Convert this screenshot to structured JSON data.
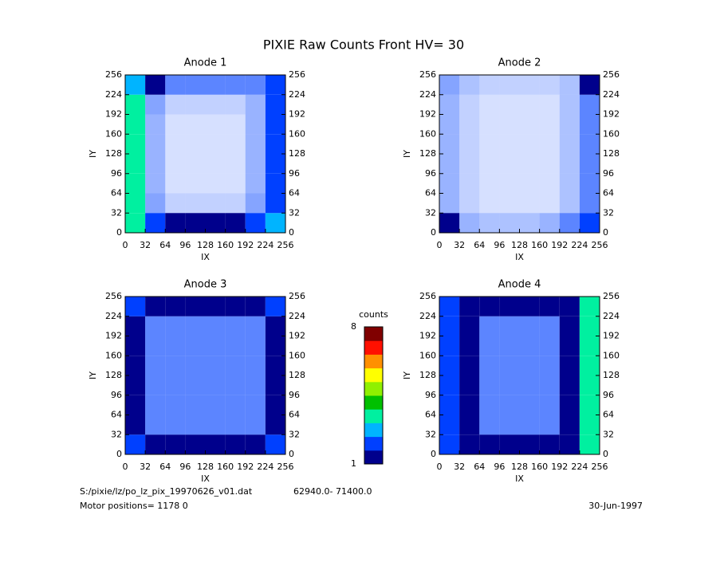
{
  "title": "PIXIE Raw Counts Front HV= 30",
  "file": "S:/pixie/lz/po_lz_pix_19970626_v01.dat",
  "range": "62940.0- 71400.0",
  "motor": "Motor positions= 1178 0",
  "date": "30-Jun-1997",
  "colorbar": {
    "label": "counts",
    "ticks": [
      1,
      8
    ],
    "lim": [
      1,
      8
    ],
    "colors": [
      "#00008c",
      "#0040ff",
      "#00b4ff",
      "#00f0a0",
      "#00c000",
      "#90f000",
      "#ffff00",
      "#ff9000",
      "#ff1000",
      "#800000"
    ]
  },
  "chart_data": [
    {
      "type": "heatmap",
      "title": "Anode 1",
      "xlabel": "IX",
      "ylabel": "IY",
      "xlim": [
        0,
        256
      ],
      "ylim": [
        0,
        256
      ],
      "xticks": [
        0,
        32,
        64,
        96,
        128,
        160,
        192,
        224,
        256
      ],
      "yticks": [
        0,
        32,
        64,
        96,
        128,
        160,
        192,
        224,
        256
      ],
      "xbins": [
        0,
        32,
        64,
        96,
        128,
        160,
        192,
        224,
        256
      ],
      "ybins": [
        0,
        32,
        64,
        96,
        128,
        160,
        192,
        224,
        256
      ],
      "z": [
        [
          3,
          1.5,
          1.2,
          1.2,
          1.2,
          1.3,
          1.5,
          2.5
        ],
        [
          3,
          0.6,
          0.3,
          0.3,
          0.3,
          0.3,
          0.6,
          2
        ],
        [
          3.5,
          0.5,
          0.2,
          0.2,
          0.2,
          0.2,
          0.5,
          2
        ],
        [
          3.5,
          0.5,
          0.2,
          0.2,
          0.2,
          0.2,
          0.5,
          2
        ],
        [
          3.5,
          0.5,
          0.2,
          0.2,
          0.2,
          0.2,
          0.5,
          2
        ],
        [
          3.5,
          0.5,
          0.2,
          0.2,
          0.2,
          0.2,
          0.5,
          2
        ],
        [
          3,
          0.6,
          0.3,
          0.3,
          0.3,
          0.3,
          0.5,
          2
        ],
        [
          2.5,
          1,
          0.8,
          0.8,
          0.8,
          0.8,
          0.8,
          2
        ]
      ]
    },
    {
      "type": "heatmap",
      "title": "Anode 2",
      "xlabel": "IX",
      "ylabel": "IY",
      "xlim": [
        0,
        256
      ],
      "ylim": [
        0,
        256
      ],
      "xticks": [
        0,
        32,
        64,
        96,
        128,
        160,
        192,
        224,
        256
      ],
      "yticks": [
        0,
        32,
        64,
        96,
        128,
        160,
        192,
        224,
        256
      ],
      "xbins": [
        0,
        32,
        64,
        96,
        128,
        160,
        192,
        224,
        256
      ],
      "ybins": [
        0,
        32,
        64,
        96,
        128,
        160,
        192,
        224,
        256
      ],
      "z": [
        [
          1,
          0.5,
          0.4,
          0.4,
          0.4,
          0.5,
          0.8,
          1.5
        ],
        [
          0.5,
          0.3,
          0.2,
          0.2,
          0.2,
          0.2,
          0.4,
          0.8
        ],
        [
          0.5,
          0.3,
          0.2,
          0.2,
          0.2,
          0.2,
          0.4,
          0.8
        ],
        [
          0.5,
          0.3,
          0.2,
          0.2,
          0.2,
          0.2,
          0.4,
          0.8
        ],
        [
          0.5,
          0.3,
          0.2,
          0.2,
          0.2,
          0.2,
          0.4,
          0.8
        ],
        [
          0.5,
          0.3,
          0.2,
          0.2,
          0.2,
          0.2,
          0.4,
          0.8
        ],
        [
          0.5,
          0.3,
          0.2,
          0.2,
          0.2,
          0.2,
          0.4,
          0.8
        ],
        [
          0.6,
          0.4,
          0.3,
          0.3,
          0.3,
          0.3,
          0.4,
          1
        ]
      ]
    },
    {
      "type": "heatmap",
      "title": "Anode 3",
      "xlabel": "IX",
      "ylabel": "IY",
      "xlim": [
        0,
        256
      ],
      "ylim": [
        0,
        256
      ],
      "xticks": [
        0,
        32,
        64,
        96,
        128,
        160,
        192,
        224,
        256
      ],
      "yticks": [
        0,
        32,
        64,
        96,
        128,
        160,
        192,
        224,
        256
      ],
      "xbins": [
        0,
        32,
        64,
        96,
        128,
        160,
        192,
        224,
        256
      ],
      "ybins": [
        0,
        32,
        64,
        96,
        128,
        160,
        192,
        224,
        256
      ],
      "z": [
        [
          1.5,
          1,
          1,
          1,
          1,
          1,
          1,
          1.5
        ],
        [
          1,
          0.8,
          0.8,
          0.8,
          0.8,
          0.8,
          0.8,
          1
        ],
        [
          1,
          0.8,
          0.8,
          0.8,
          0.8,
          0.8,
          0.8,
          1
        ],
        [
          1,
          0.8,
          0.8,
          0.8,
          0.8,
          0.8,
          0.8,
          1
        ],
        [
          1,
          0.8,
          0.8,
          0.8,
          0.8,
          0.8,
          0.8,
          1
        ],
        [
          1,
          0.8,
          0.8,
          0.8,
          0.8,
          0.8,
          0.8,
          1
        ],
        [
          1,
          0.8,
          0.8,
          0.8,
          0.8,
          0.8,
          0.8,
          1
        ],
        [
          1.5,
          1,
          1,
          1,
          1,
          1,
          1,
          1.5
        ]
      ]
    },
    {
      "type": "heatmap",
      "title": "Anode 4",
      "xlabel": "IX",
      "ylabel": "IY",
      "xlim": [
        0,
        256
      ],
      "ylim": [
        0,
        256
      ],
      "xticks": [
        0,
        32,
        64,
        96,
        128,
        160,
        192,
        224,
        256
      ],
      "yticks": [
        0,
        32,
        64,
        96,
        128,
        160,
        192,
        224,
        256
      ],
      "xbins": [
        0,
        32,
        64,
        96,
        128,
        160,
        192,
        224,
        256
      ],
      "ybins": [
        0,
        32,
        64,
        96,
        128,
        160,
        192,
        224,
        256
      ],
      "z": [
        [
          1.5,
          1,
          1,
          1,
          1,
          1,
          1.2,
          3
        ],
        [
          1.5,
          1,
          0.8,
          0.8,
          0.8,
          0.8,
          1.2,
          3.5
        ],
        [
          1.5,
          1,
          0.8,
          0.8,
          0.8,
          0.8,
          1.2,
          3.5
        ],
        [
          1.5,
          1,
          0.8,
          0.8,
          0.8,
          0.8,
          1.2,
          3.5
        ],
        [
          1.5,
          1,
          0.8,
          0.8,
          0.8,
          0.8,
          1.2,
          3.5
        ],
        [
          1.5,
          1,
          0.8,
          0.8,
          0.8,
          0.8,
          1.2,
          3.5
        ],
        [
          1.5,
          1,
          0.8,
          0.8,
          0.8,
          0.8,
          1.2,
          3.5
        ],
        [
          1.5,
          1.2,
          1,
          1,
          1,
          1,
          1.2,
          3
        ]
      ]
    }
  ]
}
